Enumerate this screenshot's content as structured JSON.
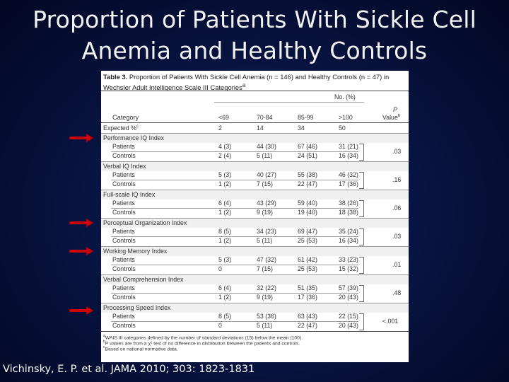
{
  "slide": {
    "title_line1": "Proportion of Patients With Sickle Cell",
    "title_line2": "Anemia and Healthy Controls",
    "citation": "Vichinsky, E. P. et al. JAMA 2010; 303: 1823-1831",
    "arrow_color": "#cc0000"
  },
  "table": {
    "label": "Table 3.",
    "caption_rest": " Proportion of Patients With Sickle Cell Anemia (n = 146) and Healthy Controls (n = 47) in Wechsler Adult Intelligence Scale III Categories",
    "caption_sup": "a",
    "group_header": "No. (%)",
    "col_category": "Category",
    "col_1": "<69",
    "col_2": "70-84",
    "col_3": "85-99",
    "col_4": ">100",
    "col_p_line1": "P",
    "col_p_line2": "Value",
    "col_p_sup": "b",
    "expected": {
      "label": "Expected %",
      "sup": "c",
      "v1": "2",
      "v2": "14",
      "v3": "34",
      "v4": "50"
    },
    "sections": [
      {
        "name": "Performance IQ Index",
        "patients": {
          "label": "Patients",
          "v1": "4 (3)",
          "v2": "44 (30)",
          "v3": "67 (46)",
          "v4": "31 (21)"
        },
        "controls": {
          "label": "Controls",
          "v1": "2 (4)",
          "v2": "5 (11)",
          "v3": "24 (51)",
          "v4": "16 (34)"
        },
        "p": ".03"
      },
      {
        "name": "Verbal IQ Index",
        "patients": {
          "label": "Patients",
          "v1": "5 (3)",
          "v2": "40 (27)",
          "v3": "55 (38)",
          "v4": "46 (32)"
        },
        "controls": {
          "label": "Controls",
          "v1": "1 (2)",
          "v2": "7 (15)",
          "v3": "22 (47)",
          "v4": "17 (36)"
        },
        "p": ".16"
      },
      {
        "name": "Full-scale IQ Index",
        "patients": {
          "label": "Patients",
          "v1": "6 (4)",
          "v2": "43 (29)",
          "v3": "59 (40)",
          "v4": "38 (26)"
        },
        "controls": {
          "label": "Controls",
          "v1": "1 (2)",
          "v2": "9 (19)",
          "v3": "19 (40)",
          "v4": "18 (38)"
        },
        "p": ".06"
      },
      {
        "name": "Perceptual Organization Index",
        "patients": {
          "label": "Patients",
          "v1": "8 (5)",
          "v2": "34 (23)",
          "v3": "69 (47)",
          "v4": "35 (24)"
        },
        "controls": {
          "label": "Controls",
          "v1": "1 (2)",
          "v2": "5 (11)",
          "v3": "25 (53)",
          "v4": "16 (34)"
        },
        "p": ".03"
      },
      {
        "name": "Working Memory Index",
        "patients": {
          "label": "Patients",
          "v1": "5 (3)",
          "v2": "47 (32)",
          "v3": "61 (42)",
          "v4": "33 (23)"
        },
        "controls": {
          "label": "Controls",
          "v1": "0",
          "v2": "7 (15)",
          "v3": "25 (53)",
          "v4": "15 (32)"
        },
        "p": ".01"
      },
      {
        "name": "Verbal Comprehension Index",
        "patients": {
          "label": "Patients",
          "v1": "6 (4)",
          "v2": "32 (22)",
          "v3": "51 (35)",
          "v4": "57 (39)"
        },
        "controls": {
          "label": "Controls",
          "v1": "1 (2)",
          "v2": "9 (19)",
          "v3": "17 (36)",
          "v4": "20 (43)"
        },
        "p": ".48"
      },
      {
        "name": "Processing Speed Index",
        "patients": {
          "label": "Patients",
          "v1": "8 (5)",
          "v2": "53 (36)",
          "v3": "63 (43)",
          "v4": "22 (15)"
        },
        "controls": {
          "label": "Controls",
          "v1": "0",
          "v2": "5 (11)",
          "v3": "22 (47)",
          "v4": "20 (43)"
        },
        "p": "<.001"
      }
    ],
    "footnotes": [
      {
        "sup": "a",
        "text": "WAIS III categories defined by the number of standard deviations (15) below the mean (100)."
      },
      {
        "sup": "b",
        "text": "P values are from a χ² test of no difference in distribution between the patients and controls."
      },
      {
        "sup": "c",
        "text": "Based on national normative data."
      }
    ]
  }
}
